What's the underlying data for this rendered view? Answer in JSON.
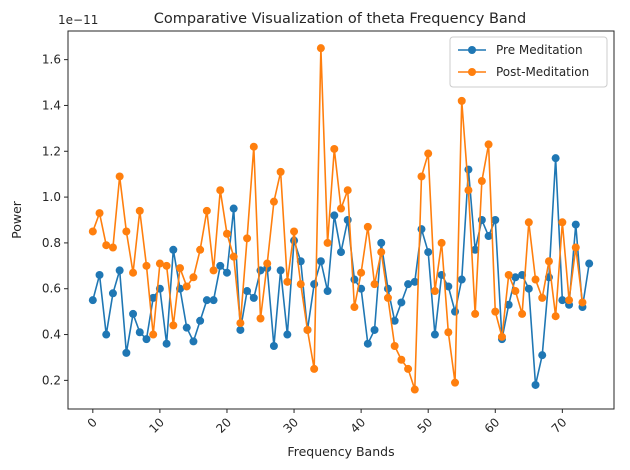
{
  "chart_data": {
    "type": "line",
    "title": "Comparative Visualization of theta Frequency Band",
    "xlabel": "Frequency Bands",
    "ylabel": "Power",
    "y_multiplier_label": "1e−11",
    "xlim": [
      -3.7,
      77.7
    ],
    "ylim": [
      0.075,
      1.725
    ],
    "x_ticks": [
      0,
      10,
      20,
      30,
      40,
      50,
      60,
      70
    ],
    "x_tick_labels": [
      "0",
      "10",
      "20",
      "30",
      "40",
      "50",
      "60",
      "70"
    ],
    "y_ticks": [
      0.2,
      0.4,
      0.6,
      0.8,
      1.0,
      1.2,
      1.4,
      1.6
    ],
    "y_tick_labels": [
      "0.2",
      "0.4",
      "0.6",
      "0.8",
      "1.0",
      "1.2",
      "1.4",
      "1.6"
    ],
    "legend_position": "top-right",
    "grid": false,
    "series": [
      {
        "name": "Pre Meditation",
        "color": "#1f77b4",
        "values": [
          0.55,
          0.66,
          0.4,
          0.58,
          0.68,
          0.32,
          0.49,
          0.41,
          0.38,
          0.56,
          0.6,
          0.36,
          0.77,
          0.6,
          0.43,
          0.37,
          0.46,
          0.55,
          0.55,
          0.7,
          0.67,
          0.95,
          0.42,
          0.59,
          0.56,
          0.68,
          0.69,
          0.35,
          0.68,
          0.4,
          0.81,
          0.72,
          0.42,
          0.62,
          0.72,
          0.59,
          0.92,
          0.76,
          0.9,
          0.64,
          0.6,
          0.36,
          0.42,
          0.8,
          0.6,
          0.46,
          0.54,
          0.62,
          0.63,
          0.86,
          0.76,
          0.4,
          0.66,
          0.61,
          0.5,
          0.64,
          1.12,
          0.77,
          0.9,
          0.83,
          0.9,
          0.38,
          0.53,
          0.65,
          0.66,
          0.6,
          0.18,
          0.31,
          0.65,
          1.17,
          0.55,
          0.53,
          0.88,
          0.52,
          0.71
        ]
      },
      {
        "name": "Post-Meditation",
        "color": "#ff7f0e",
        "values": [
          0.85,
          0.93,
          0.79,
          0.78,
          1.09,
          0.85,
          0.67,
          0.94,
          0.7,
          0.4,
          0.71,
          0.7,
          0.44,
          0.69,
          0.61,
          0.65,
          0.77,
          0.94,
          0.68,
          1.03,
          0.84,
          0.74,
          0.45,
          0.82,
          1.22,
          0.47,
          0.71,
          0.98,
          1.11,
          0.63,
          0.85,
          0.62,
          0.42,
          0.25,
          1.65,
          0.8,
          1.21,
          0.95,
          1.03,
          0.52,
          0.67,
          0.87,
          0.62,
          0.76,
          0.56,
          0.35,
          0.29,
          0.25,
          0.16,
          1.09,
          1.19,
          0.59,
          0.8,
          0.41,
          0.19,
          1.42,
          1.03,
          0.49,
          1.07,
          1.23,
          0.5,
          0.39,
          0.66,
          0.59,
          0.49,
          0.89,
          0.64,
          0.56,
          0.72,
          0.48,
          0.89,
          0.55,
          0.78,
          0.54
        ]
      }
    ]
  }
}
